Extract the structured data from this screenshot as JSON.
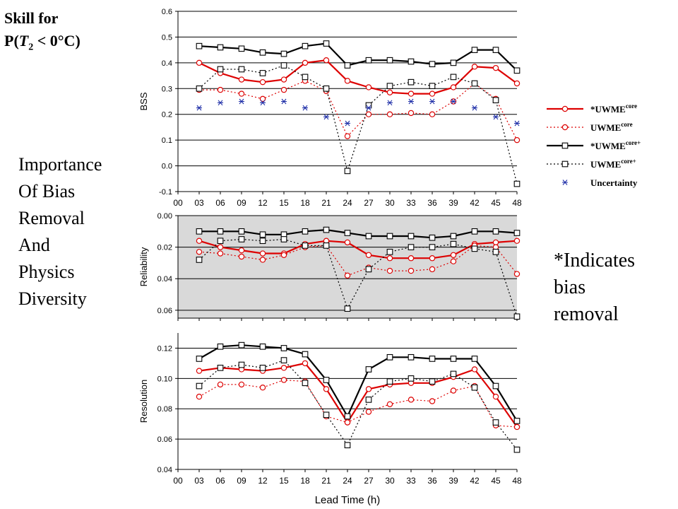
{
  "title": {
    "line1": "Skill for",
    "prefix": "P(",
    "var": "T",
    "sub": "2",
    "suffix": " < 0°C)"
  },
  "left_note": [
    "Importance",
    "Of Bias",
    "Removal",
    "And",
    "Physics",
    "Diversity"
  ],
  "right_note": [
    "*Indicates",
    "bias",
    "removal"
  ],
  "legend": [
    {
      "name": "*UWME",
      "sup": "core",
      "style": "solid-red-circle"
    },
    {
      "name": "UWME",
      "sup": "core",
      "style": "dotted-red-circle"
    },
    {
      "name": "*UWME",
      "sup": "core+",
      "style": "solid-black-square"
    },
    {
      "name": "UWME",
      "sup": "core+",
      "style": "dotted-black-square"
    },
    {
      "name": "Uncertainty",
      "sup": "",
      "style": "blue-asterisk"
    }
  ],
  "colors": {
    "red": "#dd0000",
    "black": "#000000",
    "blue": "#1f2fa8",
    "reliability_bg": "#d9d9d9"
  },
  "chart_data": [
    {
      "type": "line",
      "ylabel": "BSS",
      "ylim": [
        -0.1,
        0.6
      ],
      "yticks": [
        "-0.1",
        "0.0",
        "0.1",
        "0.2",
        "0.3",
        "0.4",
        "0.5",
        "0.6"
      ],
      "x": [
        "00",
        "03",
        "06",
        "09",
        "12",
        "15",
        "18",
        "21",
        "24",
        "27",
        "30",
        "33",
        "36",
        "39",
        "42",
        "45",
        "48"
      ],
      "grid": true,
      "series": [
        {
          "name": "*UWME core",
          "style": "solid-red-circle",
          "values": [
            null,
            0.4,
            0.36,
            0.335,
            0.325,
            0.335,
            0.4,
            0.41,
            0.33,
            0.305,
            0.285,
            0.28,
            0.28,
            0.305,
            0.385,
            0.38,
            0.32
          ]
        },
        {
          "name": "UWME core",
          "style": "dotted-red-circle",
          "values": [
            null,
            0.295,
            0.295,
            0.28,
            0.26,
            0.295,
            0.33,
            0.29,
            0.115,
            0.2,
            0.2,
            0.205,
            0.2,
            0.25,
            0.32,
            0.26,
            0.1
          ]
        },
        {
          "name": "*UWME core+",
          "style": "solid-black-square",
          "values": [
            null,
            0.465,
            0.46,
            0.455,
            0.44,
            0.435,
            0.465,
            0.475,
            0.39,
            0.41,
            0.41,
            0.405,
            0.395,
            0.4,
            0.45,
            0.45,
            0.37
          ]
        },
        {
          "name": "UWME core+",
          "style": "dotted-black-square",
          "values": [
            null,
            0.3,
            0.375,
            0.375,
            0.36,
            0.39,
            0.345,
            0.3,
            -0.02,
            0.235,
            0.31,
            0.325,
            0.31,
            0.345,
            0.32,
            0.255,
            -0.07
          ]
        },
        {
          "name": "Uncertainty",
          "style": "blue-asterisk",
          "values": [
            null,
            0.225,
            0.245,
            0.25,
            0.245,
            0.25,
            0.225,
            0.19,
            0.165,
            0.225,
            0.245,
            0.25,
            0.25,
            0.25,
            0.225,
            0.19,
            0.165
          ]
        }
      ]
    },
    {
      "type": "line",
      "ylabel": "Reliability",
      "ylim": [
        0.0,
        0.065
      ],
      "yreversed": true,
      "yticks": [
        "0.00",
        "0.02",
        "0.04",
        "0.06"
      ],
      "x": [
        "00",
        "03",
        "06",
        "09",
        "12",
        "15",
        "18",
        "21",
        "24",
        "27",
        "30",
        "33",
        "36",
        "39",
        "42",
        "45",
        "48"
      ],
      "grid": true,
      "series": [
        {
          "name": "*UWME core",
          "style": "solid-red-circle",
          "values": [
            null,
            0.016,
            0.02,
            0.022,
            0.024,
            0.024,
            0.018,
            0.016,
            0.017,
            0.025,
            0.027,
            0.027,
            0.027,
            0.025,
            0.018,
            0.017,
            0.016
          ]
        },
        {
          "name": "UWME core",
          "style": "dotted-red-circle",
          "values": [
            null,
            0.023,
            0.024,
            0.026,
            0.028,
            0.025,
            0.02,
            0.019,
            0.038,
            0.033,
            0.035,
            0.035,
            0.034,
            0.029,
            0.019,
            0.02,
            0.037
          ]
        },
        {
          "name": "*UWME core+",
          "style": "solid-black-square",
          "values": [
            null,
            0.01,
            0.01,
            0.01,
            0.012,
            0.012,
            0.01,
            0.009,
            0.011,
            0.013,
            0.013,
            0.013,
            0.014,
            0.013,
            0.01,
            0.01,
            0.011
          ]
        },
        {
          "name": "UWME core+",
          "style": "dotted-black-square",
          "values": [
            null,
            0.028,
            0.016,
            0.015,
            0.016,
            0.015,
            0.019,
            0.019,
            0.059,
            0.034,
            0.023,
            0.02,
            0.02,
            0.018,
            0.021,
            0.023,
            0.064
          ]
        }
      ]
    },
    {
      "type": "line",
      "ylabel": "Resolution",
      "xlabel": "Lead Time (h)",
      "ylim": [
        0.04,
        0.13
      ],
      "yticks": [
        "0.04",
        "0.06",
        "0.08",
        "0.10",
        "0.12"
      ],
      "x": [
        "00",
        "03",
        "06",
        "09",
        "12",
        "15",
        "18",
        "21",
        "24",
        "27",
        "30",
        "33",
        "36",
        "39",
        "42",
        "45",
        "48"
      ],
      "grid": true,
      "series": [
        {
          "name": "*UWME core",
          "style": "solid-red-circle",
          "values": [
            null,
            0.105,
            0.107,
            0.106,
            0.105,
            0.107,
            0.11,
            0.093,
            0.071,
            0.093,
            0.096,
            0.097,
            0.097,
            0.101,
            0.106,
            0.088,
            0.068
          ]
        },
        {
          "name": "UWME core",
          "style": "dotted-red-circle",
          "values": [
            null,
            0.088,
            0.096,
            0.096,
            0.094,
            0.099,
            0.098,
            0.075,
            0.071,
            0.078,
            0.083,
            0.086,
            0.085,
            0.092,
            0.095,
            0.069,
            0.068
          ]
        },
        {
          "name": "*UWME core+",
          "style": "solid-black-square",
          "values": [
            null,
            0.113,
            0.121,
            0.122,
            0.121,
            0.12,
            0.116,
            0.099,
            0.075,
            0.106,
            0.114,
            0.114,
            0.113,
            0.113,
            0.113,
            0.095,
            0.072
          ]
        },
        {
          "name": "UWME core+",
          "style": "dotted-black-square",
          "values": [
            null,
            0.095,
            0.107,
            0.109,
            0.107,
            0.112,
            0.097,
            0.076,
            0.056,
            0.086,
            0.098,
            0.1,
            0.098,
            0.103,
            0.094,
            0.071,
            0.053
          ]
        }
      ]
    }
  ]
}
